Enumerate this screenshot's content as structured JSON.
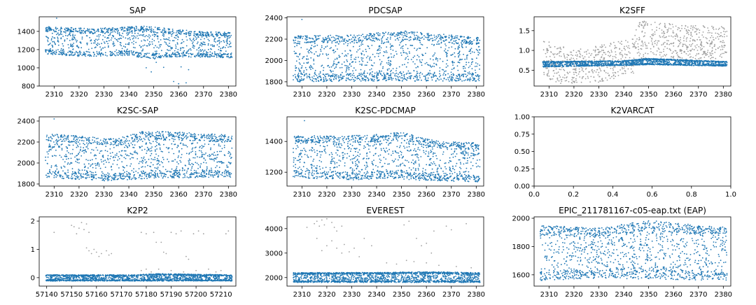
{
  "figure": {
    "background": "#ffffff",
    "point_color": "#1f77b4",
    "outlier_color": "#a0a0a0"
  },
  "chart_data": [
    {
      "type": "scatter",
      "title": "SAP",
      "xlim": [
        2304,
        2383
      ],
      "ylim": [
        800,
        1560
      ],
      "xticks": [
        2310,
        2320,
        2330,
        2340,
        2350,
        2360,
        2370,
        2380
      ],
      "yticks": [
        800,
        1000,
        1200,
        1400
      ],
      "series": [
        {
          "role": "data",
          "color": "#1f77b4",
          "pattern": "band",
          "n": 1400,
          "x_range": [
            2306.5,
            2381.5
          ],
          "lower": [
            [
              2306.5,
              1150
            ],
            [
              2320,
              1125
            ],
            [
              2340,
              1135
            ],
            [
              2350,
              1090
            ],
            [
              2360,
              1120
            ],
            [
              2381.5,
              1110
            ]
          ],
          "upper": [
            [
              2306.5,
              1455
            ],
            [
              2325,
              1430
            ],
            [
              2345,
              1460
            ],
            [
              2360,
              1420
            ],
            [
              2370,
              1395
            ],
            [
              2381.5,
              1390
            ]
          ],
          "extra_points": [
            [
              2311,
              1545
            ],
            [
              2347,
              1000
            ],
            [
              2349,
              955
            ],
            [
              2351,
              1060
            ],
            [
              2354,
              1005
            ],
            [
              2358,
              850
            ],
            [
              2360,
              825
            ],
            [
              2361,
              1010
            ],
            [
              2363,
              835
            ],
            [
              2364,
              980
            ]
          ]
        }
      ]
    },
    {
      "type": "scatter",
      "title": "PDCSAP",
      "xlim": [
        2304,
        2383
      ],
      "ylim": [
        1760,
        2410
      ],
      "xticks": [
        2310,
        2320,
        2330,
        2340,
        2350,
        2360,
        2370,
        2380
      ],
      "yticks": [
        1800,
        2000,
        2200,
        2400
      ],
      "series": [
        {
          "role": "data",
          "color": "#1f77b4",
          "pattern": "band",
          "n": 1500,
          "x_range": [
            2306.5,
            2381.5
          ],
          "lower": [
            [
              2306.5,
              1800
            ],
            [
              2340,
              1805
            ],
            [
              2381.5,
              1805
            ]
          ],
          "upper": [
            [
              2306.5,
              2230
            ],
            [
              2330,
              2240
            ],
            [
              2350,
              2280
            ],
            [
              2365,
              2250
            ],
            [
              2381.5,
              2215
            ]
          ],
          "extra_points": [
            [
              2310,
              2385
            ]
          ]
        }
      ]
    },
    {
      "type": "scatter",
      "title": "K2SFF",
      "xlim": [
        2304,
        2383
      ],
      "ylim": [
        0.1,
        1.85
      ],
      "xticks": [
        2310,
        2320,
        2330,
        2340,
        2350,
        2360,
        2370,
        2380
      ],
      "yticks": [
        0.5,
        1.0,
        1.5
      ],
      "series": [
        {
          "role": "outliers",
          "color": "#a0a0a0",
          "pattern": "band",
          "n": 900,
          "x_range": [
            2307.5,
            2381.5
          ],
          "lower": [
            [
              2307.5,
              0.3
            ],
            [
              2315,
              0.15
            ],
            [
              2330,
              0.2
            ],
            [
              2344,
              0.4
            ],
            [
              2346,
              0.75
            ],
            [
              2381.5,
              0.8
            ]
          ],
          "upper": [
            [
              2307.5,
              1.3
            ],
            [
              2320,
              1.0
            ],
            [
              2335,
              1.2
            ],
            [
              2344,
              1.3
            ],
            [
              2346,
              1.75
            ],
            [
              2365,
              1.65
            ],
            [
              2381.5,
              1.6
            ]
          ]
        },
        {
          "role": "data",
          "color": "#1f77b4",
          "pattern": "band",
          "n": 1700,
          "x_range": [
            2307.5,
            2381.5
          ],
          "lower": [
            [
              2307.5,
              0.58
            ],
            [
              2340,
              0.62
            ],
            [
              2350,
              0.64
            ],
            [
              2381.5,
              0.6
            ]
          ],
          "upper": [
            [
              2307.5,
              0.72
            ],
            [
              2340,
              0.74
            ],
            [
              2350,
              0.8
            ],
            [
              2381.5,
              0.72
            ]
          ]
        }
      ]
    },
    {
      "type": "scatter",
      "title": "K2SC-SAP",
      "xlim": [
        2304,
        2383
      ],
      "ylim": [
        1780,
        2440
      ],
      "xticks": [
        2310,
        2320,
        2330,
        2340,
        2350,
        2360,
        2370,
        2380
      ],
      "yticks": [
        1800,
        2000,
        2200,
        2400
      ],
      "series": [
        {
          "role": "data",
          "color": "#1f77b4",
          "pattern": "band",
          "n": 1500,
          "x_range": [
            2306.5,
            2381.5
          ],
          "lower": [
            [
              2306.5,
              1860
            ],
            [
              2330,
              1830
            ],
            [
              2340,
              1840
            ],
            [
              2350,
              1855
            ],
            [
              2381.5,
              1865
            ]
          ],
          "upper": [
            [
              2306.5,
              2285
            ],
            [
              2325,
              2250
            ],
            [
              2335,
              2230
            ],
            [
              2345,
              2300
            ],
            [
              2355,
              2300
            ],
            [
              2381.5,
              2265
            ]
          ],
          "extra_points": [
            [
              2310,
              2420
            ]
          ]
        }
      ]
    },
    {
      "type": "scatter",
      "title": "K2SC-PDCMAP",
      "xlim": [
        2304,
        2383
      ],
      "ylim": [
        1110,
        1560
      ],
      "xticks": [
        2310,
        2320,
        2330,
        2340,
        2350,
        2360,
        2370,
        2380
      ],
      "yticks": [
        1200,
        1400
      ],
      "series": [
        {
          "role": "data",
          "color": "#1f77b4",
          "pattern": "band",
          "n": 1500,
          "x_range": [
            2306.5,
            2381.5
          ],
          "lower": [
            [
              2306.5,
              1165
            ],
            [
              2330,
              1150
            ],
            [
              2345,
              1160
            ],
            [
              2360,
              1145
            ],
            [
              2381.5,
              1135
            ]
          ],
          "upper": [
            [
              2306.5,
              1435
            ],
            [
              2335,
              1440
            ],
            [
              2350,
              1460
            ],
            [
              2365,
              1400
            ],
            [
              2381.5,
              1390
            ]
          ],
          "extra_points": [
            [
              2311,
              1535
            ]
          ]
        }
      ]
    },
    {
      "type": "scatter",
      "title": "K2VARCAT",
      "xlim": [
        0,
        1
      ],
      "ylim": [
        0,
        1
      ],
      "xticks": [
        0.0,
        0.2,
        0.4,
        0.6,
        0.8,
        1.0
      ],
      "yticks": [
        0.0,
        0.25,
        0.5,
        0.75,
        1.0
      ],
      "series": []
    },
    {
      "type": "scatter",
      "title": "K2P2",
      "xlim": [
        57137,
        57216
      ],
      "ylim": [
        -0.3,
        2.15
      ],
      "xticks": [
        57140,
        57150,
        57160,
        57170,
        57180,
        57190,
        57200,
        57210
      ],
      "yticks": [
        0,
        1,
        2
      ],
      "series": [
        {
          "role": "outliers",
          "color": "#a0a0a0",
          "pattern": "points",
          "points": [
            [
              57143,
              1.6
            ],
            [
              57150,
              1.85
            ],
            [
              57151,
              1.8
            ],
            [
              57152,
              1.55
            ],
            [
              57153,
              1.75
            ],
            [
              57154,
              1.95
            ],
            [
              57155,
              1.7
            ],
            [
              57156,
              1.9
            ],
            [
              57157,
              1.6
            ],
            [
              57156,
              1.05
            ],
            [
              57157,
              0.95
            ],
            [
              57158,
              0.85
            ],
            [
              57159,
              1.0
            ],
            [
              57160,
              0.9
            ],
            [
              57161,
              0.75
            ],
            [
              57162,
              0.85
            ],
            [
              57164,
              0.95
            ],
            [
              57165,
              0.8
            ],
            [
              57166,
              0.85
            ],
            [
              57178,
              1.6
            ],
            [
              57180,
              1.55
            ],
            [
              57183,
              1.6
            ],
            [
              57184,
              1.25
            ],
            [
              57186,
              1.25
            ],
            [
              57187,
              0.9
            ],
            [
              57188,
              0.85
            ],
            [
              57190,
              1.6
            ],
            [
              57192,
              1.55
            ],
            [
              57194,
              1.65
            ],
            [
              57196,
              0.75
            ],
            [
              57197,
              0.65
            ],
            [
              57199,
              1.55
            ],
            [
              57201,
              1.65
            ],
            [
              57203,
              1.55
            ],
            [
              57212,
              1.55
            ],
            [
              57213,
              1.65
            ],
            [
              57178,
              0.25
            ],
            [
              57180,
              0.3
            ],
            [
              57182,
              0.2
            ],
            [
              57185,
              0.3
            ],
            [
              57190,
              0.25
            ],
            [
              57195,
              0.2
            ],
            [
              57200,
              0.25
            ],
            [
              57205,
              0.3
            ],
            [
              57208,
              0.2
            ],
            [
              57210,
              0.25
            ]
          ]
        },
        {
          "role": "data",
          "color": "#1f77b4",
          "pattern": "band",
          "n": 1800,
          "x_range": [
            57139.5,
            57214.5
          ],
          "lower": [
            [
              57139.5,
              -0.12
            ],
            [
              57214.5,
              -0.12
            ]
          ],
          "upper": [
            [
              57139.5,
              0.1
            ],
            [
              57175,
              0.1
            ],
            [
              57185,
              0.14
            ],
            [
              57214.5,
              0.1
            ]
          ]
        }
      ]
    },
    {
      "type": "scatter",
      "title": "EVEREST",
      "xlim": [
        2304,
        2383
      ],
      "ylim": [
        1650,
        4480
      ],
      "xticks": [
        2310,
        2320,
        2330,
        2340,
        2350,
        2360,
        2370,
        2380
      ],
      "yticks": [
        2000,
        3000,
        4000
      ],
      "series": [
        {
          "role": "outliers",
          "color": "#a0a0a0",
          "pattern": "points",
          "points": [
            [
              2312,
              4050
            ],
            [
              2315,
              4200
            ],
            [
              2316,
              4300
            ],
            [
              2317,
              4100
            ],
            [
              2318,
              4350
            ],
            [
              2319,
              4150
            ],
            [
              2320,
              4400
            ],
            [
              2322,
              4250
            ],
            [
              2323,
              4050
            ],
            [
              2324,
              3900
            ],
            [
              2326,
              4100
            ],
            [
              2316,
              3600
            ],
            [
              2318,
              3100
            ],
            [
              2320,
              3300
            ],
            [
              2322,
              3500
            ],
            [
              2324,
              3200
            ],
            [
              2326,
              3000
            ],
            [
              2327,
              3350
            ],
            [
              2329,
              3050
            ],
            [
              2331,
              3200
            ],
            [
              2333,
              2850
            ],
            [
              2335,
              3600
            ],
            [
              2338,
              3300
            ],
            [
              2351,
              4150
            ],
            [
              2353,
              4300
            ],
            [
              2356,
              3600
            ],
            [
              2358,
              3300
            ],
            [
              2360,
              3400
            ],
            [
              2362,
              3000
            ],
            [
              2363,
              3900
            ],
            [
              2368,
              4100
            ],
            [
              2370,
              3950
            ],
            [
              2376,
              4200
            ],
            [
              2344,
              2600
            ],
            [
              2348,
              2550
            ],
            [
              2352,
              2700
            ],
            [
              2355,
              2650
            ],
            [
              2360,
              2600
            ],
            [
              2365,
              2500
            ],
            [
              2372,
              2450
            ],
            [
              2378,
              2400
            ]
          ]
        },
        {
          "role": "data",
          "color": "#1f77b4",
          "pattern": "band",
          "n": 1800,
          "x_range": [
            2306.5,
            2381.5
          ],
          "lower": [
            [
              2306.5,
              1800
            ],
            [
              2381.5,
              1800
            ]
          ],
          "upper": [
            [
              2306.5,
              2200
            ],
            [
              2345,
              2210
            ],
            [
              2360,
              2240
            ],
            [
              2381.5,
              2200
            ]
          ]
        }
      ]
    },
    {
      "type": "scatter",
      "title": "EPIC_211781167-c05-eap.txt (EAP)",
      "xlim": [
        2304,
        2383
      ],
      "ylim": [
        1520,
        2010
      ],
      "xticks": [
        2310,
        2320,
        2330,
        2340,
        2350,
        2360,
        2370,
        2380
      ],
      "yticks": [
        1600,
        1800,
        2000
      ],
      "series": [
        {
          "role": "data",
          "color": "#1f77b4",
          "pattern": "band",
          "n": 1500,
          "x_range": [
            2306.5,
            2381.5
          ],
          "lower": [
            [
              2306.5,
              1560
            ],
            [
              2330,
              1575
            ],
            [
              2350,
              1570
            ],
            [
              2381.5,
              1560
            ]
          ],
          "upper": [
            [
              2306.5,
              1950
            ],
            [
              2330,
              1930
            ],
            [
              2350,
              1985
            ],
            [
              2365,
              1960
            ],
            [
              2381.5,
              1935
            ]
          ]
        }
      ]
    }
  ]
}
